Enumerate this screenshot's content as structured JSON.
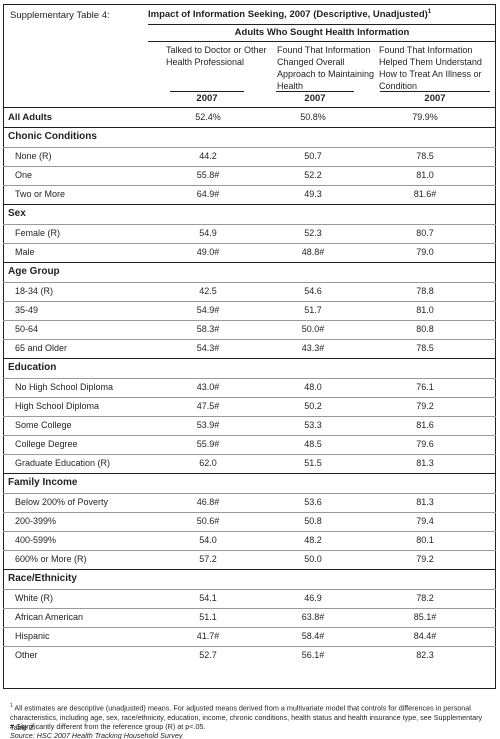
{
  "table_label": "Supplementary Table 4:",
  "title": "Impact of Information Seeking, 2007 (Descriptive, Unadjusted)",
  "title_sup": "1",
  "subheader": "Adults Who Sought Health Information",
  "columns": [
    "Talked to Doctor or Other Health Professional",
    "Found That Information Changed Overall Approach to Maintaining Health",
    "Found That Information Helped Them Understand How to Treat An Illness or Condition"
  ],
  "years": [
    "2007",
    "2007",
    "2007"
  ],
  "all_adults": {
    "label": "All Adults",
    "values": [
      "52.4%",
      "50.8%",
      "79.9%"
    ]
  },
  "groups": [
    {
      "title": "Chonic Conditions",
      "rows": [
        {
          "label": "None (R)",
          "values": [
            "44.2",
            "50.7",
            "78.5"
          ]
        },
        {
          "label": "One",
          "values": [
            "55.8#",
            "52.2",
            "81.0"
          ]
        },
        {
          "label": "Two or More",
          "values": [
            "64.9#",
            "49.3",
            "81.6#"
          ]
        }
      ]
    },
    {
      "title": "Sex",
      "rows": [
        {
          "label": "Female (R)",
          "values": [
            "54.9",
            "52.3",
            "80.7"
          ]
        },
        {
          "label": "Male",
          "values": [
            "49.0#",
            "48.8#",
            "79.0"
          ]
        }
      ]
    },
    {
      "title": "Age Group",
      "rows": [
        {
          "label": "18-34 (R)",
          "values": [
            "42.5",
            "54.6",
            "78.8"
          ]
        },
        {
          "label": "35-49",
          "values": [
            "54.9#",
            "51.7",
            "81.0"
          ]
        },
        {
          "label": "50-64",
          "values": [
            "58.3#",
            "50.0#",
            "80.8"
          ]
        },
        {
          "label": "65 and Older",
          "values": [
            "54.3#",
            "43.3#",
            "78.5"
          ]
        }
      ]
    },
    {
      "title": "Education",
      "rows": [
        {
          "label": "No High School Diploma",
          "values": [
            "43.0#",
            "48.0",
            "76.1"
          ]
        },
        {
          "label": "High School Diploma",
          "values": [
            "47.5#",
            "50.2",
            "79.2"
          ]
        },
        {
          "label": "Some College",
          "values": [
            "53.9#",
            "53.3",
            "81.6"
          ]
        },
        {
          "label": "College Degree",
          "values": [
            "55.9#",
            "48.5",
            "79.6"
          ]
        },
        {
          "label": "Graduate Education (R)",
          "values": [
            "62.0",
            "51.5",
            "81.3"
          ]
        }
      ]
    },
    {
      "title": "Family Income",
      "rows": [
        {
          "label": "Below 200% of Poverty",
          "values": [
            "46.8#",
            "53.6",
            "81.3"
          ]
        },
        {
          "label": "200-399%",
          "values": [
            "50.6#",
            "50.8",
            "79.4"
          ]
        },
        {
          "label": "400-599%",
          "values": [
            "54.0",
            "48.2",
            "80.1"
          ]
        },
        {
          "label": "600% or More (R)",
          "values": [
            "57.2",
            "50.0",
            "79.2"
          ]
        }
      ]
    },
    {
      "title": "Race/Ethnicity",
      "rows": [
        {
          "label": "White (R)",
          "values": [
            "54.1",
            "46.9",
            "78.2"
          ]
        },
        {
          "label": "African American",
          "values": [
            "51.1",
            "63.8#",
            "85.1#"
          ]
        },
        {
          "label": "Hispanic",
          "values": [
            "41.7#",
            "58.4#",
            "84.4#"
          ]
        },
        {
          "label": "Other",
          "values": [
            "52.7",
            "56.1#",
            "82.3"
          ]
        }
      ]
    }
  ],
  "footnotes": {
    "note1_sup": "1",
    "note1": "All estimates are descriptive (unadjusted) means. For adjusted means derived from a multivariate model that controls for differences in personal characteristics, including age, sex, race/ethnicity, education, income, chronic conditions, health status and health insurance type, see Supplementary Table 2.",
    "note2": "# Significantly different from the reference group (R) at p<.05.",
    "source": "Source: HSC 2007 Health Tracking Household Survey"
  }
}
